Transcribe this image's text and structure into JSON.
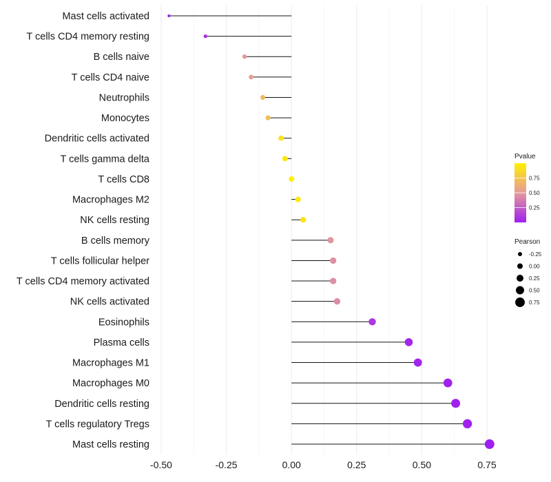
{
  "chart_data": {
    "type": "lollipop",
    "title": "",
    "xlabel": "",
    "ylabel": "",
    "xlim": [
      -0.5,
      0.78
    ],
    "x_ticks": [
      -0.5,
      -0.25,
      0.0,
      0.25,
      0.5,
      0.75
    ],
    "x_tick_labels": [
      "-0.50",
      "-0.25",
      "0.00",
      "0.25",
      "0.50",
      "0.75"
    ],
    "categories": [
      "Mast cells activated",
      "T cells CD4 memory resting",
      "B cells naive",
      "T cells CD4 naive",
      "Neutrophils",
      "Monocytes",
      "Dendritic cells activated",
      "T cells gamma delta",
      "T cells CD8",
      "Macrophages M2",
      "NK cells resting",
      "B cells memory",
      "T cells follicular helper",
      "T cells CD4 memory activated",
      "NK cells activated",
      "Eosinophils",
      "Plasma cells",
      "Macrophages M1",
      "Macrophages M0",
      "Dendritic cells resting",
      "T cells regulatory  Tregs",
      "Mast cells resting"
    ],
    "values": [
      -0.47,
      -0.33,
      -0.18,
      -0.155,
      -0.11,
      -0.09,
      -0.04,
      -0.025,
      0.0,
      0.025,
      0.045,
      0.15,
      0.16,
      0.16,
      0.175,
      0.31,
      0.45,
      0.485,
      0.6,
      0.63,
      0.675,
      0.76
    ],
    "pvalues": [
      0.02,
      0.07,
      0.5,
      0.52,
      0.68,
      0.72,
      0.92,
      0.95,
      1.0,
      0.96,
      0.93,
      0.48,
      0.46,
      0.45,
      0.44,
      0.1,
      0.03,
      0.02,
      0.01,
      0.01,
      0.01,
      0.0
    ],
    "legend": {
      "color_title": "Pvalue",
      "color_ticks": [
        0.75,
        0.5,
        0.25
      ],
      "color_tick_labels": [
        "0.75",
        "0.50",
        "0.25"
      ],
      "color_low": "#9f1ff0",
      "color_mid": "#e59a9a",
      "color_high": "#fff000",
      "size_title": "Pearson",
      "size_values": [
        -0.25,
        0.0,
        0.25,
        0.5,
        0.75
      ],
      "size_labels": [
        "-0.25",
        "0.00",
        "0.25",
        "0.50",
        "0.75"
      ],
      "placement": "right"
    },
    "grid": true
  }
}
